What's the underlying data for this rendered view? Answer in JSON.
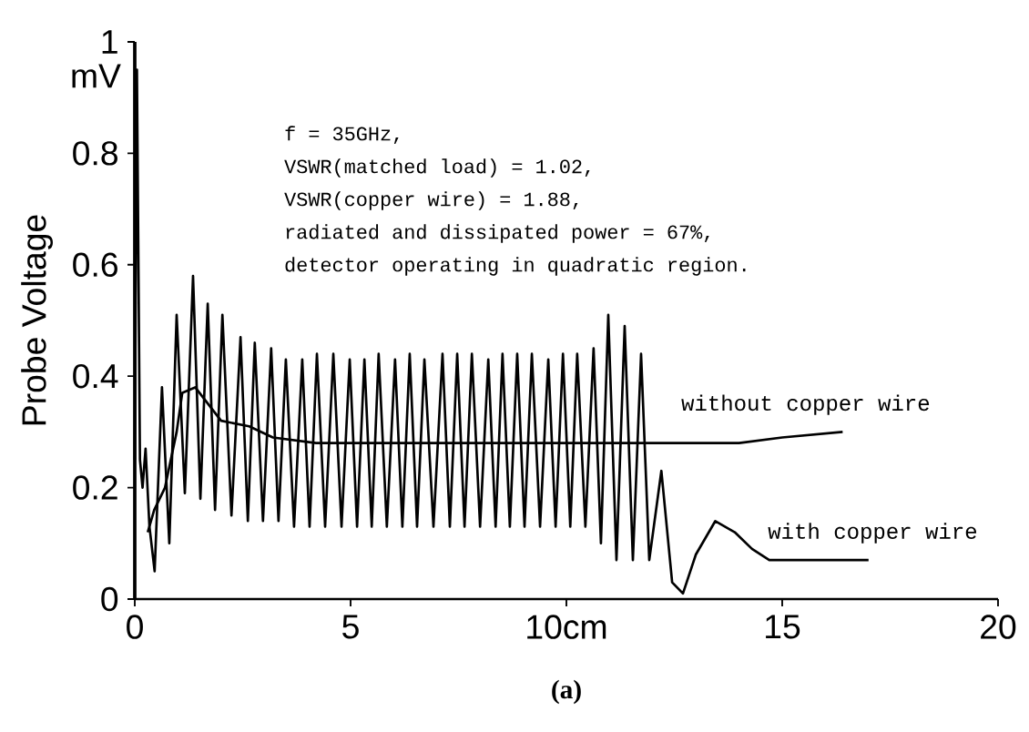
{
  "chart_data": {
    "type": "line",
    "ylabel": "Probe Voltage",
    "xlim": [
      0,
      20
    ],
    "ylim": [
      0,
      1
    ],
    "xticks": [
      0,
      5,
      {
        "value": 10,
        "label": "10cm"
      },
      15,
      20
    ],
    "yticks": [
      0,
      0.2,
      0.4,
      0.6,
      0.8,
      1
    ],
    "annotations": [
      "mV",
      "f = 35GHz,",
      "VSWR(matched load) = 1.02,",
      "VSWR(copper wire)  = 1.88,",
      "radiated and dissipated power = 67%,",
      "detector operating in quadratic region.",
      "(a)"
    ],
    "grid": false,
    "marker": "none",
    "line_style": "solid",
    "series": [
      {
        "name": "without copper wire",
        "color": "#000000",
        "x": [
          0.3,
          0.45,
          0.7,
          0.97,
          1.1,
          1.4,
          1.7,
          2.0,
          2.65,
          3.2,
          4.2,
          5.0,
          7.0,
          9.0,
          11.0,
          12.0,
          13.0,
          14.0,
          15.0,
          16.4
        ],
        "values": [
          0.12,
          0.16,
          0.2,
          0.3,
          0.37,
          0.38,
          0.35,
          0.32,
          0.31,
          0.29,
          0.28,
          0.28,
          0.28,
          0.28,
          0.28,
          0.28,
          0.28,
          0.28,
          0.29,
          0.3
        ]
      },
      {
        "name": "with copper wire",
        "color": "#000000",
        "x": [
          0.0,
          0.05,
          0.12,
          0.18,
          0.25,
          0.34,
          0.46,
          0.63,
          0.8,
          0.97,
          1.16,
          1.35,
          1.52,
          1.69,
          1.86,
          2.03,
          2.24,
          2.45,
          2.62,
          2.78,
          2.97,
          3.16,
          3.33,
          3.5,
          3.69,
          3.88,
          4.05,
          4.22,
          4.41,
          4.6,
          4.79,
          4.98,
          5.15,
          5.32,
          5.49,
          5.65,
          5.84,
          6.03,
          6.2,
          6.37,
          6.54,
          6.71,
          6.92,
          7.13,
          7.3,
          7.47,
          7.64,
          7.81,
          8.0,
          8.19,
          8.36,
          8.52,
          8.69,
          8.86,
          9.03,
          9.2,
          9.39,
          9.58,
          9.75,
          9.92,
          10.09,
          10.25,
          10.44,
          10.63,
          10.8,
          10.97,
          11.16,
          11.35,
          11.54,
          11.73,
          11.92,
          12.2,
          12.45,
          12.7,
          13.0,
          13.45,
          13.9,
          14.3,
          14.7,
          15.5,
          17.0
        ],
        "values": [
          0.25,
          0.95,
          0.25,
          0.2,
          0.27,
          0.13,
          0.05,
          0.38,
          0.1,
          0.51,
          0.19,
          0.58,
          0.18,
          0.53,
          0.16,
          0.51,
          0.15,
          0.47,
          0.14,
          0.46,
          0.14,
          0.45,
          0.14,
          0.43,
          0.13,
          0.43,
          0.13,
          0.44,
          0.13,
          0.44,
          0.13,
          0.43,
          0.13,
          0.43,
          0.13,
          0.44,
          0.13,
          0.43,
          0.13,
          0.44,
          0.13,
          0.43,
          0.13,
          0.44,
          0.13,
          0.44,
          0.13,
          0.44,
          0.13,
          0.43,
          0.13,
          0.44,
          0.13,
          0.44,
          0.13,
          0.44,
          0.13,
          0.43,
          0.13,
          0.44,
          0.13,
          0.44,
          0.13,
          0.45,
          0.1,
          0.51,
          0.07,
          0.49,
          0.07,
          0.44,
          0.07,
          0.23,
          0.03,
          0.01,
          0.08,
          0.14,
          0.12,
          0.09,
          0.07,
          0.07,
          0.07
        ]
      }
    ]
  }
}
